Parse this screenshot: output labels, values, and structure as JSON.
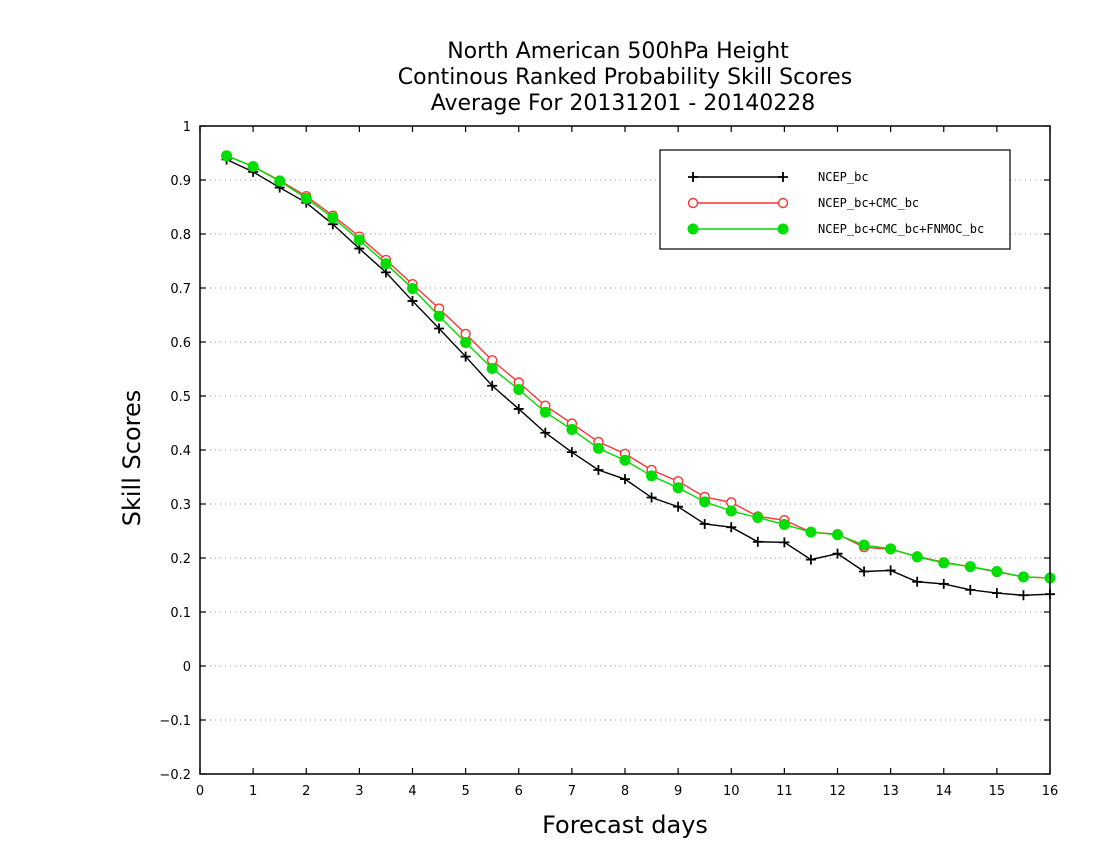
{
  "chart_data": {
    "type": "line",
    "title": [
      "North American 500hPa Height",
      "Continous Ranked Probability Skill Scores",
      "Average For 20131201 - 20140228"
    ],
    "xlabel": "Forecast days",
    "ylabel": "Skill Scores",
    "xlim": [
      0,
      16
    ],
    "ylim": [
      -0.2,
      1
    ],
    "x_ticks": [
      "0",
      "1",
      "2",
      "3",
      "4",
      "5",
      "6",
      "7",
      "8",
      "9",
      "10",
      "11",
      "12",
      "13",
      "14",
      "15",
      "16"
    ],
    "y_ticks": [
      "1",
      "0.9",
      "0.8",
      "0.7",
      "0.6",
      "0.5",
      "0.4",
      "0.3",
      "0.2",
      "0.1",
      "0",
      "-0.1",
      "-0.2"
    ],
    "grid": "horizontal dotted",
    "legend_position": "top-right",
    "x": [
      0.5,
      1,
      1.5,
      2,
      2.5,
      3,
      3.5,
      4,
      4.5,
      5,
      5.5,
      6,
      6.5,
      7,
      7.5,
      8,
      8.5,
      9,
      9.5,
      10,
      10.5,
      11,
      11.5,
      12,
      12.5,
      13,
      13.5,
      14,
      14.5,
      15,
      15.5,
      16
    ],
    "series": [
      {
        "name": "NCEP_bc",
        "color": "#000000",
        "marker": "plus",
        "values": [
          0.938,
          0.915,
          0.886,
          0.858,
          0.818,
          0.773,
          0.729,
          0.676,
          0.625,
          0.573,
          0.519,
          0.476,
          0.432,
          0.396,
          0.363,
          0.346,
          0.312,
          0.295,
          0.263,
          0.257,
          0.23,
          0.229,
          0.197,
          0.208,
          0.175,
          0.177,
          0.156,
          0.152,
          0.141,
          0.135,
          0.131,
          0.133
        ]
      },
      {
        "name": "NCEP_bc+CMC_bc",
        "color": "#ff3333",
        "marker": "open-circle",
        "values": [
          0.945,
          0.925,
          0.899,
          0.87,
          0.834,
          0.795,
          0.752,
          0.707,
          0.662,
          0.615,
          0.566,
          0.525,
          0.482,
          0.449,
          0.415,
          0.393,
          0.363,
          0.342,
          0.313,
          0.303,
          0.277,
          0.27,
          0.248,
          0.244,
          0.22,
          0.216,
          0.203,
          0.192,
          0.184,
          0.174,
          0.165,
          0.163
        ]
      },
      {
        "name": "NCEP_bc+CMC_bc+FNMOC_bc",
        "color": "#00dd00",
        "marker": "filled-circle",
        "values": [
          0.945,
          0.925,
          0.898,
          0.866,
          0.83,
          0.789,
          0.745,
          0.699,
          0.648,
          0.599,
          0.551,
          0.512,
          0.47,
          0.438,
          0.403,
          0.381,
          0.352,
          0.33,
          0.304,
          0.287,
          0.275,
          0.262,
          0.248,
          0.243,
          0.224,
          0.217,
          0.202,
          0.191,
          0.184,
          0.175,
          0.165,
          0.163
        ]
      }
    ]
  }
}
